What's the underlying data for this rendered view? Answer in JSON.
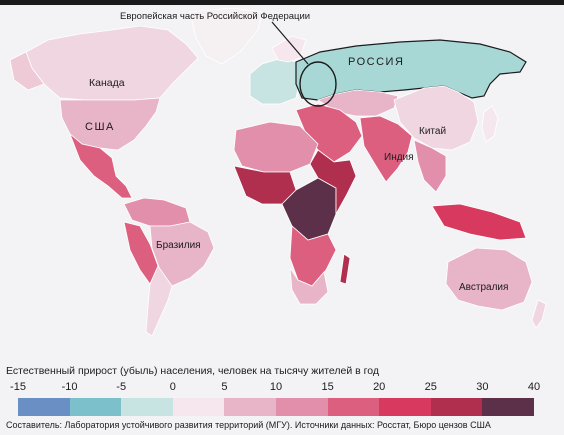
{
  "map": {
    "euro_label": "Европейская часть Российской Федерации",
    "regions": {
      "russia": "РОССИЯ",
      "canada": "Канада",
      "usa": "США",
      "china": "Китай",
      "india": "Индия",
      "brazil": "Бразилия",
      "australia": "Австралия"
    }
  },
  "legend": {
    "title": "Естественный прирост (убыль) населения, человек на тысячу жителей в год",
    "ticks": [
      "-15",
      "-10",
      "-5",
      "0",
      "5",
      "10",
      "15",
      "20",
      "25",
      "30",
      "40"
    ],
    "colors": [
      "#6a8fc4",
      "#7cc0cc",
      "#c7e4e2",
      "#f6e6ee",
      "#e8b4c8",
      "#e28fab",
      "#dc5f80",
      "#d8395f",
      "#b02e4e",
      "#5c3048"
    ]
  },
  "footer": {
    "text": "Составитель: Лаборатория устойчивого развития территорий (МГУ).   Источники данных: Росстат, Бюро цензов США"
  }
}
